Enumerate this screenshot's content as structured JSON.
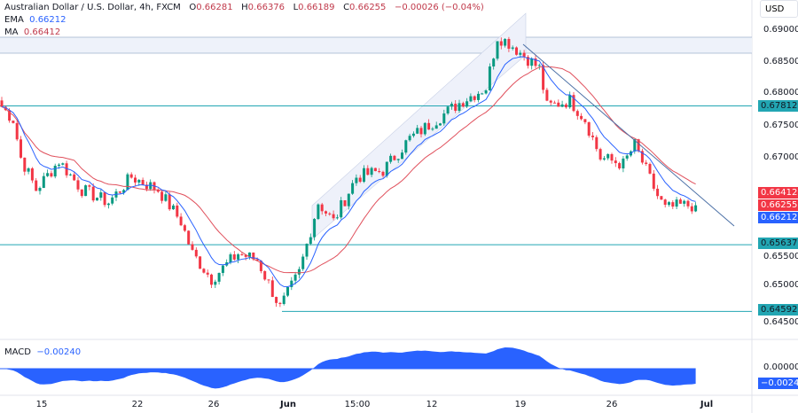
{
  "header": {
    "symbol": "Australian Dollar / U.S. Dollar, 4h, FXCM",
    "open_label": "O",
    "open": "0.66281",
    "high_label": "H",
    "high": "0.66376",
    "low_label": "L",
    "low": "0.66189",
    "close_label": "C",
    "close": "0.66255",
    "change": "−0.00026 (−0.04%)"
  },
  "indicators": {
    "ema_label": "EMA",
    "ema": "0.66212",
    "ma_label": "MA",
    "ma": "0.66412",
    "macd_label": "MACD",
    "macd": "−0.00240"
  },
  "price_axis": {
    "currency": "USD",
    "ticks": [
      "0.69000",
      "0.68500",
      "0.68000",
      "0.67500",
      "0.67000",
      "0.65500",
      "0.65000",
      "0.64500"
    ],
    "macd_ticks": [
      "0.00000"
    ]
  },
  "tags": {
    "level1": "0.67812",
    "ma": "0.66412",
    "close": "0.66255",
    "ema": "0.66212",
    "level2": "0.65637",
    "level3": "0.64592",
    "macd": "−0.00240"
  },
  "time_axis": [
    "15",
    "22",
    "26",
    "Jun",
    "15:00",
    "12",
    "19",
    "26",
    "Jul"
  ],
  "colors": {
    "up": "#089981",
    "down": "#f23645",
    "ema": "#2962ff",
    "ma": "#e0505c",
    "level": "#22a6b3",
    "macd": "#2962ff",
    "trendline": "#4a6fa5"
  },
  "chart_data": {
    "type": "candlestick",
    "levels": [
      0.67812,
      0.65637,
      0.64592
    ],
    "close_path": [
      [
        0,
        0.678
      ],
      [
        3,
        0.676
      ],
      [
        5,
        0.67
      ],
      [
        9,
        0.665
      ],
      [
        15,
        0.6695
      ],
      [
        21,
        0.665
      ],
      [
        28,
        0.663
      ],
      [
        34,
        0.667
      ],
      [
        41,
        0.665
      ],
      [
        47,
        0.66
      ],
      [
        50,
        0.655
      ],
      [
        55,
        0.651
      ],
      [
        62,
        0.655
      ],
      [
        67,
        0.654
      ],
      [
        73,
        0.6465
      ],
      [
        78,
        0.652
      ],
      [
        83,
        0.663
      ],
      [
        87,
        0.66
      ],
      [
        93,
        0.667
      ],
      [
        100,
        0.668
      ],
      [
        107,
        0.673
      ],
      [
        114,
        0.676
      ],
      [
        121,
        0.679
      ],
      [
        127,
        0.681
      ],
      [
        130,
        0.689
      ],
      [
        133,
        0.688
      ],
      [
        137,
        0.686
      ],
      [
        141,
        0.684
      ],
      [
        143,
        0.678
      ],
      [
        149,
        0.679
      ],
      [
        153,
        0.676
      ],
      [
        157,
        0.67
      ],
      [
        163,
        0.669
      ],
      [
        166,
        0.672
      ],
      [
        172,
        0.664
      ],
      [
        174,
        0.662
      ],
      [
        178,
        0.6625
      ],
      [
        182,
        0.66255
      ]
    ]
  }
}
